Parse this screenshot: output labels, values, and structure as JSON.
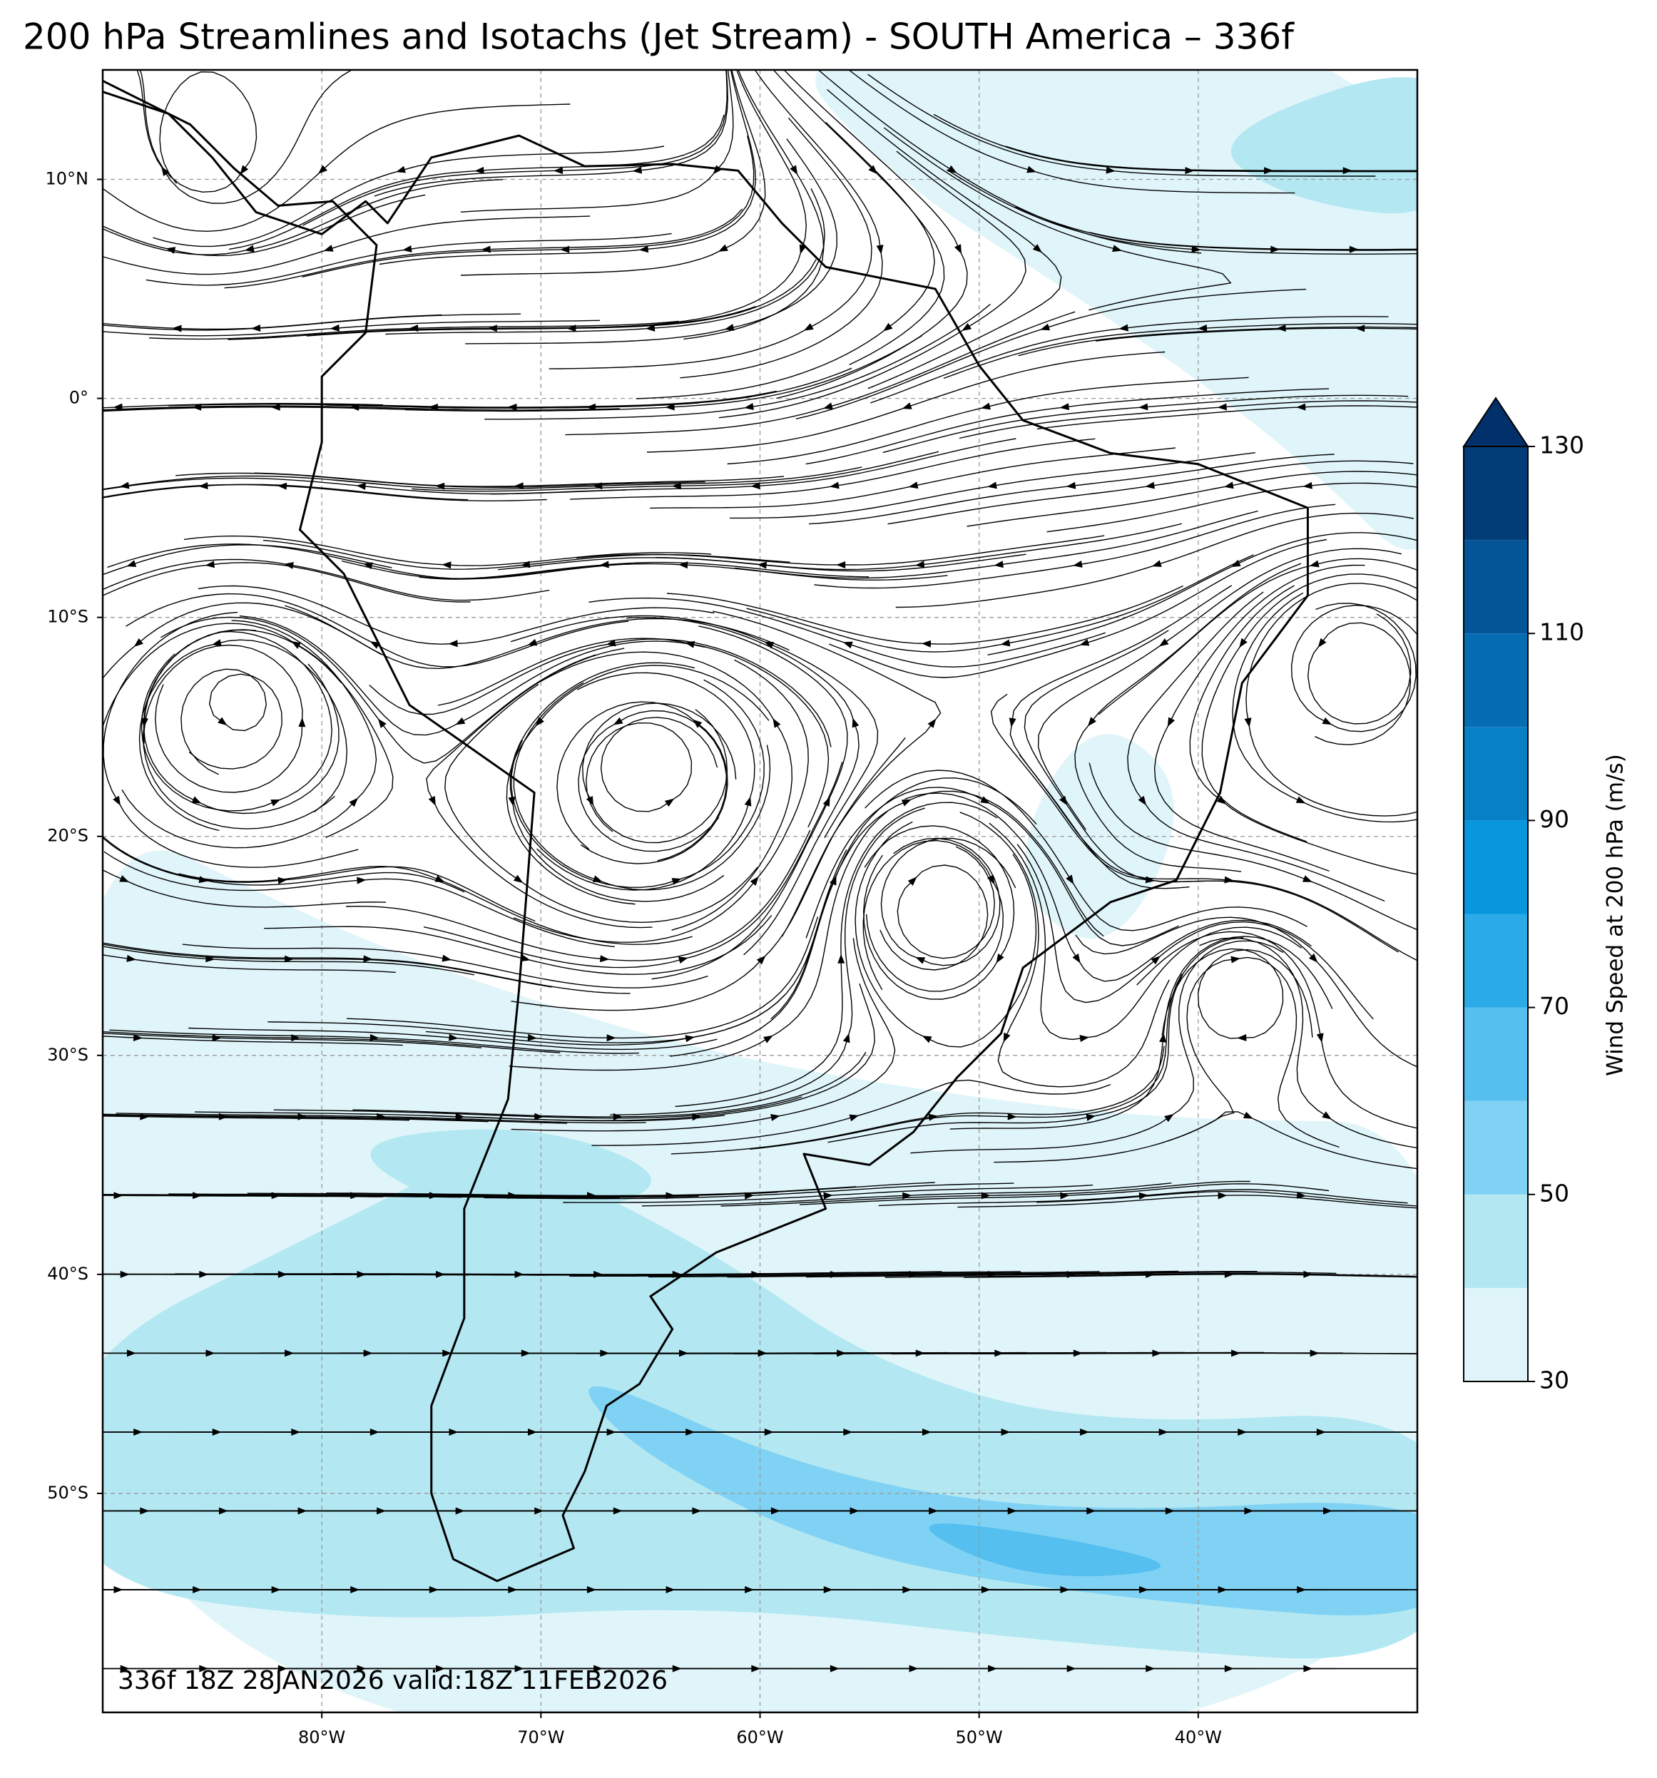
{
  "title": "200 hPa Streamlines and Isotachs (Jet Stream) - SOUTH America – 336f",
  "map": {
    "lon_range": [
      -90,
      -30
    ],
    "lat_range": [
      -60,
      15
    ],
    "grid": true,
    "lon_ticks": [
      {
        "value": -80,
        "label": "80°W"
      },
      {
        "value": -70,
        "label": "70°W"
      },
      {
        "value": -60,
        "label": "60°W"
      },
      {
        "value": -50,
        "label": "50°W"
      },
      {
        "value": -40,
        "label": "40°W"
      }
    ],
    "lat_ticks": [
      {
        "value": 10,
        "label": "10°N"
      },
      {
        "value": 0,
        "label": "0°"
      },
      {
        "value": -10,
        "label": "10°S"
      },
      {
        "value": -20,
        "label": "20°S"
      },
      {
        "value": -30,
        "label": "30°S"
      },
      {
        "value": -40,
        "label": "40°S"
      },
      {
        "value": -50,
        "label": "50°S"
      }
    ]
  },
  "colorbar": {
    "label": "Wind Speed at 200 hPa (m/s)",
    "levels": [
      30,
      40,
      50,
      60,
      70,
      80,
      90,
      100,
      110,
      120,
      130
    ],
    "colors": [
      "#e0f5fa",
      "#b3e8f2",
      "#80d2f4",
      "#55bff0",
      "#2aabe8",
      "#0896dd",
      "#0780c6",
      "#066db3",
      "#045597",
      "#033d77"
    ],
    "extend_color": "#02306a",
    "ticks": [
      30,
      50,
      70,
      90,
      110,
      130
    ]
  },
  "footer": "336f 18Z 28JAN2026 valid:18Z 11FEB2026"
}
